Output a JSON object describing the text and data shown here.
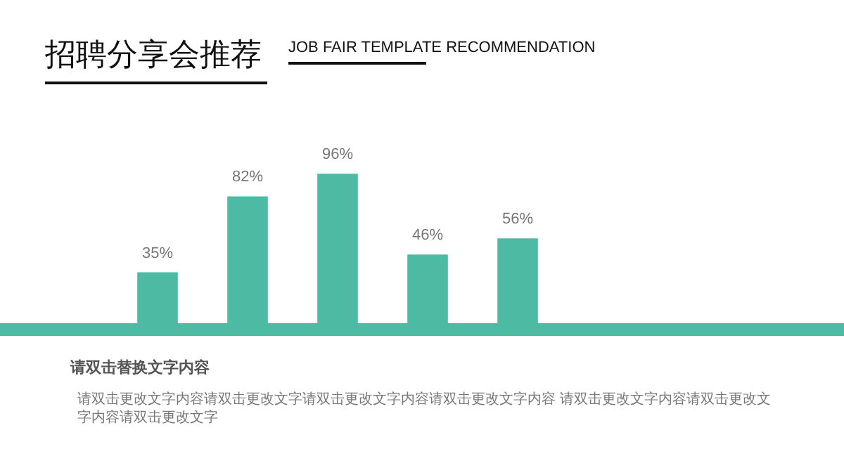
{
  "chart_data": {
    "type": "bar",
    "title": "招聘分享会推荐",
    "subtitle": "JOB FAIR TEMPLATE RECOMMENDATION",
    "categories": [
      null,
      null,
      null,
      null,
      null
    ],
    "values": [
      35,
      82,
      96,
      46,
      56
    ],
    "value_labels": [
      "35%",
      "82%",
      "96%",
      "46%",
      "56%"
    ],
    "color": "#4dbaa3",
    "grid": false,
    "legend": false,
    "tick_labels": false,
    "annotations": [
      "请双击替换文字内容",
      "请双击更改文字内容请双击更改文字请双击更改文字内容请双击更改文字内容 请双击更改文字内容请双击更改文字内容请双击更改文字"
    ]
  }
}
